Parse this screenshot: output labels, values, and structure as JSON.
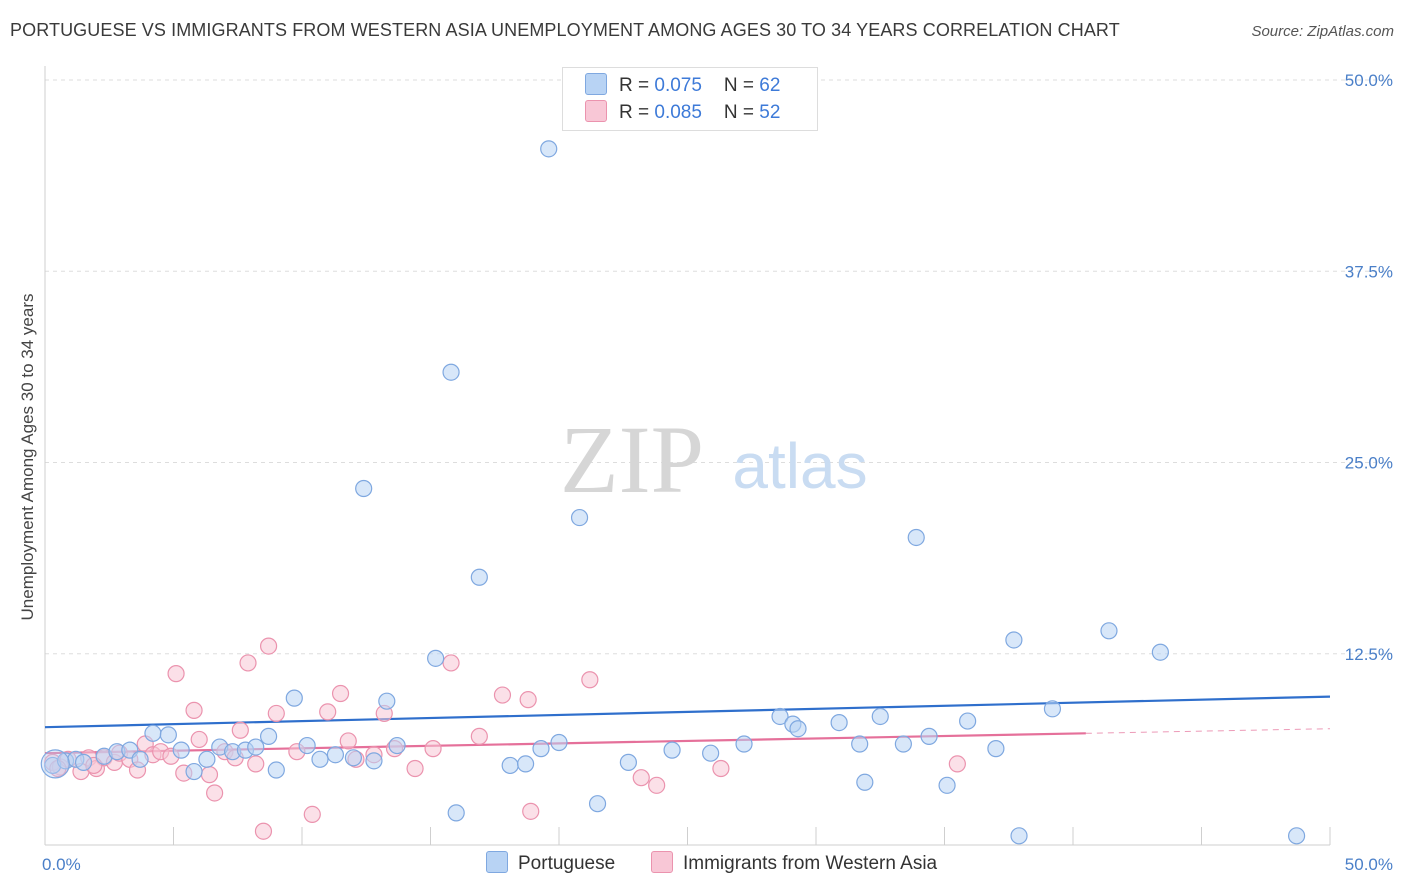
{
  "title": "PORTUGUESE VS IMMIGRANTS FROM WESTERN ASIA UNEMPLOYMENT AMONG AGES 30 TO 34 YEARS CORRELATION CHART",
  "source": "Source: ZipAtlas.com",
  "watermark": {
    "zip": "ZIP",
    "atlas": "atlas"
  },
  "colors": {
    "blue_fill": "#b8d3f4",
    "blue_stroke": "#7fa8e0",
    "blue_line": "#2f6fcc",
    "pink_fill": "#f8c7d6",
    "pink_stroke": "#eb93ae",
    "pink_line": "#e5709a",
    "tick_text": "#4a7fc8",
    "grid": "#dddddd"
  },
  "legend": {
    "blue": {
      "r_label": "R = ",
      "r_value": "0.075",
      "n_label": "N = ",
      "n_value": "62"
    },
    "pink": {
      "r_label": "R = ",
      "r_value": "0.085",
      "n_label": "N = ",
      "n_value": "52"
    }
  },
  "bottom_legend": {
    "blue": "Portuguese",
    "pink": "Immigrants from Western Asia"
  },
  "chart_data": {
    "type": "scatter",
    "title": "PORTUGUESE VS IMMIGRANTS FROM WESTERN ASIA UNEMPLOYMENT AMONG AGES 30 TO 34 YEARS CORRELATION CHART",
    "xlabel": "",
    "ylabel": "Unemployment Among Ages 30 to 34 years",
    "xlim": [
      0,
      50
    ],
    "ylim": [
      0,
      50
    ],
    "x_tick_labels": [
      "0.0%",
      "50.0%"
    ],
    "y_ticks": [
      12.5,
      25.0,
      37.5,
      50.0
    ],
    "y_tick_labels": [
      "12.5%",
      "25.0%",
      "37.5%",
      "50.0%"
    ],
    "grid": true,
    "series": [
      {
        "name": "Portuguese",
        "color": "blue",
        "r": 0.075,
        "n": 62,
        "trend": {
          "x": [
            0,
            50
          ],
          "y": [
            7.7,
            9.7
          ]
        },
        "points": [
          [
            0.3,
            5.2
          ],
          [
            0.8,
            5.5
          ],
          [
            1.2,
            5.6
          ],
          [
            1.5,
            5.4
          ],
          [
            2.3,
            5.8
          ],
          [
            2.8,
            6.1
          ],
          [
            3.3,
            6.2
          ],
          [
            3.7,
            5.6
          ],
          [
            4.2,
            7.3
          ],
          [
            4.8,
            7.2
          ],
          [
            5.3,
            6.2
          ],
          [
            5.8,
            4.8
          ],
          [
            6.3,
            5.6
          ],
          [
            6.8,
            6.4
          ],
          [
            7.3,
            6.1
          ],
          [
            7.8,
            6.2
          ],
          [
            8.2,
            6.4
          ],
          [
            8.7,
            7.1
          ],
          [
            9.0,
            4.9
          ],
          [
            9.7,
            9.6
          ],
          [
            10.2,
            6.5
          ],
          [
            10.7,
            5.6
          ],
          [
            11.3,
            5.9
          ],
          [
            12.0,
            5.7
          ],
          [
            12.4,
            23.3
          ],
          [
            12.8,
            5.5
          ],
          [
            13.3,
            9.4
          ],
          [
            13.7,
            6.5
          ],
          [
            15.2,
            12.2
          ],
          [
            15.8,
            30.9
          ],
          [
            16.0,
            2.1
          ],
          [
            16.9,
            17.5
          ],
          [
            18.1,
            5.2
          ],
          [
            18.7,
            5.3
          ],
          [
            19.3,
            6.3
          ],
          [
            19.6,
            45.5
          ],
          [
            20.0,
            6.7
          ],
          [
            20.8,
            21.4
          ],
          [
            21.5,
            2.7
          ],
          [
            22.7,
            5.4
          ],
          [
            24.4,
            6.2
          ],
          [
            25.9,
            6.0
          ],
          [
            27.2,
            6.6
          ],
          [
            28.6,
            8.4
          ],
          [
            29.1,
            7.9
          ],
          [
            29.3,
            7.6
          ],
          [
            30.9,
            8.0
          ],
          [
            31.7,
            6.6
          ],
          [
            31.9,
            4.1
          ],
          [
            32.5,
            8.4
          ],
          [
            33.4,
            6.6
          ],
          [
            33.9,
            20.1
          ],
          [
            34.4,
            7.1
          ],
          [
            35.1,
            3.9
          ],
          [
            35.9,
            8.1
          ],
          [
            37.0,
            6.3
          ],
          [
            37.7,
            13.4
          ],
          [
            37.9,
            0.6
          ],
          [
            39.2,
            8.9
          ],
          [
            41.4,
            14.0
          ],
          [
            43.4,
            12.6
          ],
          [
            48.7,
            0.6
          ]
        ]
      },
      {
        "name": "Immigrants from Western Asia",
        "color": "pink",
        "r": 0.085,
        "n": 52,
        "trend": {
          "x": [
            0,
            40.5
          ],
          "y": [
            6.0,
            7.3
          ]
        },
        "trend_extension": {
          "x": [
            40.5,
            50
          ],
          "y": [
            7.3,
            7.6
          ]
        },
        "points": [
          [
            0.3,
            5.4
          ],
          [
            0.6,
            5.1
          ],
          [
            0.9,
            5.6
          ],
          [
            1.4,
            4.8
          ],
          [
            1.7,
            5.7
          ],
          [
            2.0,
            5.0
          ],
          [
            2.3,
            5.7
          ],
          [
            2.7,
            5.4
          ],
          [
            2.9,
            6.0
          ],
          [
            3.3,
            5.6
          ],
          [
            3.6,
            4.9
          ],
          [
            3.9,
            6.6
          ],
          [
            4.2,
            5.9
          ],
          [
            4.5,
            6.1
          ],
          [
            4.9,
            5.8
          ],
          [
            5.1,
            11.2
          ],
          [
            5.4,
            4.7
          ],
          [
            5.8,
            8.8
          ],
          [
            6.0,
            6.9
          ],
          [
            6.4,
            4.6
          ],
          [
            6.6,
            3.4
          ],
          [
            7.0,
            6.1
          ],
          [
            7.4,
            5.7
          ],
          [
            7.6,
            7.5
          ],
          [
            7.9,
            11.9
          ],
          [
            8.2,
            5.3
          ],
          [
            8.5,
            0.9
          ],
          [
            8.7,
            13.0
          ],
          [
            9.0,
            8.6
          ],
          [
            9.8,
            6.1
          ],
          [
            10.4,
            2.0
          ],
          [
            11.0,
            8.7
          ],
          [
            11.5,
            9.9
          ],
          [
            11.8,
            6.8
          ],
          [
            12.1,
            5.6
          ],
          [
            12.8,
            5.9
          ],
          [
            13.2,
            8.6
          ],
          [
            13.6,
            6.3
          ],
          [
            14.4,
            5.0
          ],
          [
            15.1,
            6.3
          ],
          [
            15.8,
            11.9
          ],
          [
            16.9,
            7.1
          ],
          [
            17.8,
            9.8
          ],
          [
            18.8,
            9.5
          ],
          [
            18.9,
            2.2
          ],
          [
            21.2,
            10.8
          ],
          [
            23.2,
            4.4
          ],
          [
            23.8,
            3.9
          ],
          [
            26.3,
            5.0
          ],
          [
            35.5,
            5.3
          ],
          [
            0.5,
            5.0
          ],
          [
            1.9,
            5.2
          ]
        ]
      }
    ]
  }
}
